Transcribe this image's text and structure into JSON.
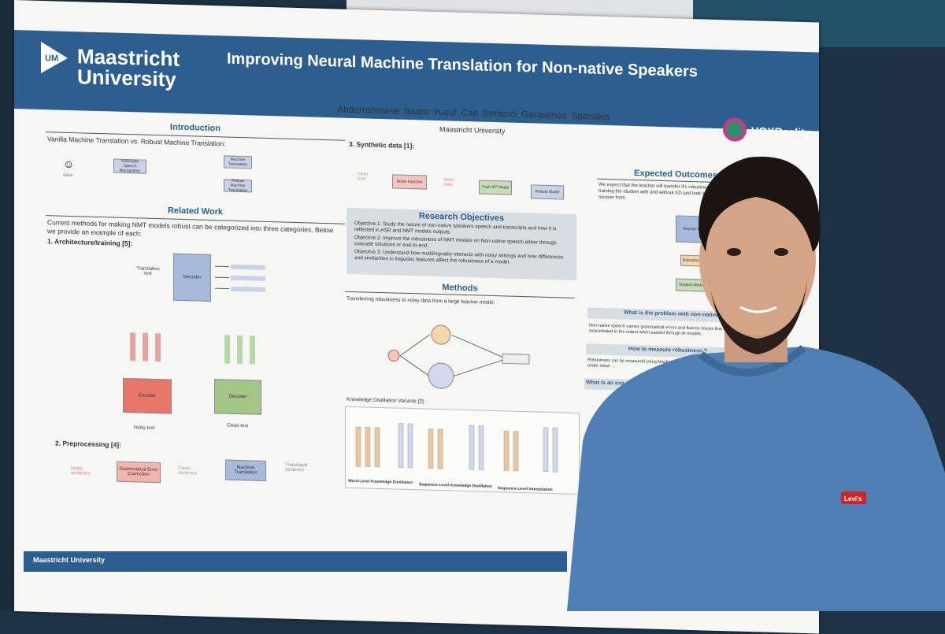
{
  "poster": {
    "logo_line1": "Maastricht",
    "logo_line2": "University",
    "title_line1": "Improving Neural Machine Translation for Non-native Speakers",
    "authors": "Abderrahmane Issam     Yusuf Can Semerci     Gerasimos Spanakis",
    "affiliation": "Maastricht University",
    "vox": "VOXReality",
    "intro_title": "Introduction",
    "intro_sub": "Vanilla Machine Translation vs. Robust Machine Translation:",
    "related_title": "Related Work",
    "related_text": "Current methods for making NMT models robust can be categorized into three categories. Below we provide an example of each:",
    "arch_heading": "1. Architecture/training [5]:",
    "translation_text": "Translation text",
    "decoder": "Decoder",
    "encoder": "Encoder",
    "noisy_text": "Noisy text",
    "clean_text": "Clean text",
    "preproc_heading": "2. Preprocessing [4]:",
    "noisy_sentence": "Noisy sentence",
    "gec": "Grammatical Error Correction",
    "clean_sentence": "Clean sentence",
    "mt": "Machine Translation",
    "translated_sentence": "Translated sentence",
    "synthetic_heading": "3. Synthetic data [1]:",
    "noise_injection": "Noise Injection",
    "train_mt": "Train MT Model",
    "robust_model": "Robust Model",
    "clean_data": "Clean Data",
    "noisy_data": "Noisy Data",
    "ro_title": "Research Objectives",
    "ro1": "Objective 1: Study the nature of non-native speakers speech and transcripts and how it is reflected in ASR and NMT models outputs.",
    "ro2": "Objective 2: Improve the robustness of NMT models on Non-native speech either through cascade solutions or end-to-end.",
    "ro3": "Objective 3: Understand how multilinguality interacts with noisy settings and how differences and similarities in linguistic features affect the robustness of a model.",
    "methods_title": "Methods",
    "methods_text": "Transferring robustness to noisy data from a large teacher model:",
    "kd_heading": "Knowledge Distillation Variants [2]:",
    "kd1": "Word-Level Knowledge Distillation",
    "kd2": "Sequence-Level Knowledge Distillation",
    "kd3": "Sequence-Level Interpolation",
    "expected_title": "Expected Outcomes",
    "expected_text": "We expect that the teacher will transfer it's robustness to the stu by training the student with and without KD and look into wh was able to recover from.",
    "teacher_model": "Teacher Model",
    "robustness": "Robustness",
    "student_model": "Student Model",
    "q1": "What is the problem with non-native spee",
    "q1_text": "Non-native speech carries grammatical errors and fluency issues that will exacerbated in the output when passed through AI models.",
    "q2": "How to measure robustness ?",
    "q2_text": "Robustness can be measured using Machine Transla performance of the model under clean ...",
    "q3": "What is an exa",
    "footer": "Maastricht University",
    "asr": "Automatic Speech Recognition",
    "mt_box": "Machine Translation",
    "rmt_box": "Robust Machine Translation",
    "voice": "Voice"
  },
  "colors": {
    "brand_blue": "#2c5f8f",
    "encoder_red": "#e8776a",
    "decoder_green": "#a3c585",
    "sweater": "#4f7fb4"
  }
}
